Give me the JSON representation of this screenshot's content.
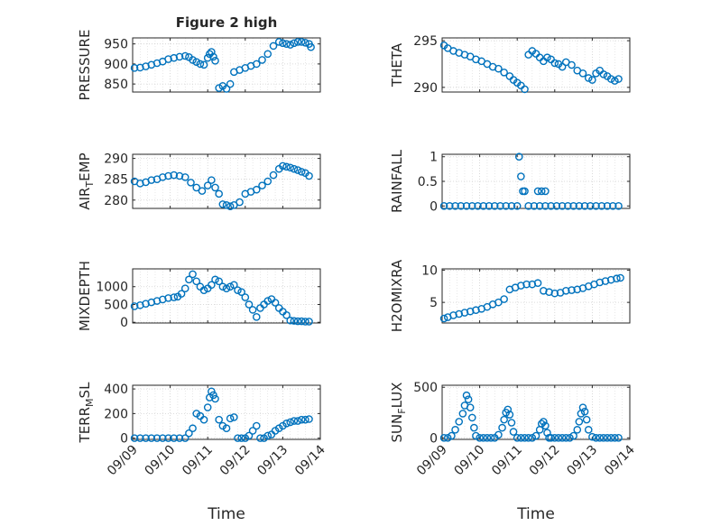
{
  "figure": {
    "title": "Figure 2 high",
    "xlabel": "Time"
  },
  "chart_data": [
    {
      "type": "scatter",
      "ylabel": "PRESSURE",
      "ylim": [
        830,
        965
      ],
      "yticks": [
        850,
        900,
        950
      ],
      "xlim": [
        0,
        5
      ],
      "xticklabels": [
        "09/09",
        "09/10",
        "09/11",
        "09/12",
        "09/13",
        "09/14"
      ],
      "grid": true,
      "marker": "circle-open",
      "color": "#0072BD",
      "series": [
        {
          "x": [
            0.05,
            0.2,
            0.35,
            0.5,
            0.65,
            0.8,
            0.95,
            1.1,
            1.25,
            1.4,
            1.5,
            1.6,
            1.7,
            1.8,
            1.9,
            2.0,
            2.05,
            2.1,
            2.15,
            2.2,
            2.3,
            2.4,
            2.5,
            2.6,
            2.7,
            2.85,
            3.0,
            3.15,
            3.3,
            3.45,
            3.6,
            3.75,
            3.9,
            4.0,
            4.1,
            4.2,
            4.3,
            4.4,
            4.5,
            4.6,
            4.7,
            4.75
          ],
          "y": [
            890,
            891,
            894,
            898,
            902,
            906,
            912,
            915,
            918,
            920,
            917,
            910,
            905,
            900,
            898,
            915,
            925,
            930,
            918,
            908,
            840,
            845,
            838,
            850,
            880,
            885,
            890,
            895,
            900,
            910,
            925,
            945,
            955,
            952,
            950,
            948,
            952,
            955,
            955,
            953,
            950,
            942
          ]
        }
      ]
    },
    {
      "type": "scatter",
      "ylabel": "THETA",
      "ylim": [
        289.5,
        295.3
      ],
      "yticks": [
        290,
        295
      ],
      "xlim": [
        0,
        5
      ],
      "grid": true,
      "marker": "circle-open",
      "color": "#0072BD",
      "series": [
        {
          "x": [
            0.05,
            0.15,
            0.3,
            0.45,
            0.6,
            0.75,
            0.9,
            1.05,
            1.2,
            1.35,
            1.5,
            1.65,
            1.8,
            1.9,
            2.0,
            2.1,
            2.2,
            2.3,
            2.4,
            2.5,
            2.6,
            2.7,
            2.8,
            2.9,
            3.0,
            3.1,
            3.2,
            3.3,
            3.45,
            3.6,
            3.75,
            3.9,
            4.0,
            4.1,
            4.2,
            4.3,
            4.4,
            4.5,
            4.6,
            4.7
          ],
          "y": [
            294.5,
            294.2,
            293.9,
            293.7,
            293.5,
            293.3,
            293.0,
            292.8,
            292.5,
            292.2,
            292.0,
            291.6,
            291.2,
            290.8,
            290.5,
            290.2,
            289.8,
            293.5,
            293.9,
            293.6,
            293.2,
            292.8,
            293.2,
            293.0,
            292.6,
            292.5,
            292.2,
            292.7,
            292.4,
            291.8,
            291.5,
            291.0,
            290.8,
            291.5,
            291.8,
            291.4,
            291.2,
            290.9,
            290.7,
            290.9
          ]
        }
      ]
    },
    {
      "type": "scatter",
      "ylabel": "AIR_T_EMP",
      "ylim": [
        278,
        291
      ],
      "yticks": [
        280,
        285,
        290
      ],
      "xlim": [
        0,
        5
      ],
      "grid": true,
      "marker": "circle-open",
      "color": "#0072BD",
      "series": [
        {
          "x": [
            0.05,
            0.2,
            0.35,
            0.5,
            0.65,
            0.8,
            0.95,
            1.1,
            1.25,
            1.4,
            1.55,
            1.7,
            1.85,
            2.0,
            2.1,
            2.2,
            2.3,
            2.4,
            2.5,
            2.6,
            2.7,
            2.85,
            3.0,
            3.15,
            3.3,
            3.45,
            3.6,
            3.75,
            3.9,
            4.0,
            4.1,
            4.2,
            4.3,
            4.4,
            4.5,
            4.6,
            4.7
          ],
          "y": [
            284.5,
            284.0,
            284.3,
            284.8,
            285.0,
            285.5,
            285.8,
            286.0,
            285.8,
            285.5,
            284.2,
            283.0,
            282.2,
            283.5,
            284.8,
            283.0,
            281.5,
            279.0,
            278.8,
            278.5,
            278.8,
            279.5,
            281.5,
            282.0,
            282.5,
            283.5,
            284.5,
            286.0,
            287.5,
            288.2,
            288.0,
            287.8,
            287.5,
            287.2,
            286.8,
            286.5,
            285.8
          ]
        }
      ]
    },
    {
      "type": "scatter",
      "ylabel": "RAINFALL",
      "ylim": [
        -0.05,
        1.05
      ],
      "yticks": [
        0,
        0.5,
        1
      ],
      "xlim": [
        0,
        5
      ],
      "grid": true,
      "marker": "circle-open",
      "color": "#0072BD",
      "series": [
        {
          "x": [
            0.05,
            0.2,
            0.35,
            0.5,
            0.65,
            0.8,
            0.95,
            1.1,
            1.25,
            1.4,
            1.55,
            1.7,
            1.85,
            2.0,
            2.05,
            2.1,
            2.15,
            2.2,
            2.3,
            2.45,
            2.6,
            2.75,
            2.9,
            3.05,
            3.2,
            3.35,
            3.5,
            3.65,
            3.8,
            3.95,
            4.1,
            4.25,
            4.4,
            4.55,
            4.7,
            2.55,
            2.65,
            2.75
          ],
          "y": [
            0,
            0,
            0,
            0,
            0,
            0,
            0,
            0,
            0,
            0,
            0,
            0,
            0,
            0,
            1.0,
            0.6,
            0.3,
            0.3,
            0,
            0,
            0,
            0,
            0,
            0,
            0,
            0,
            0,
            0,
            0,
            0,
            0,
            0,
            0,
            0,
            0,
            0.3,
            0.3,
            0.3
          ]
        }
      ]
    },
    {
      "type": "scatter",
      "ylabel": "MIXDEPTH",
      "ylim": [
        -20,
        1500
      ],
      "yticks": [
        0,
        500,
        1000
      ],
      "xlim": [
        0,
        5
      ],
      "grid": true,
      "marker": "circle-open",
      "color": "#0072BD",
      "series": [
        {
          "x": [
            0.05,
            0.2,
            0.35,
            0.5,
            0.65,
            0.8,
            0.95,
            1.1,
            1.2,
            1.3,
            1.4,
            1.5,
            1.6,
            1.7,
            1.8,
            1.9,
            2.0,
            2.1,
            2.2,
            2.3,
            2.4,
            2.5,
            2.6,
            2.7,
            2.8,
            2.9,
            3.0,
            3.1,
            3.2,
            3.3,
            3.4,
            3.5,
            3.6,
            3.7,
            3.8,
            3.9,
            4.0,
            4.1,
            4.2,
            4.3,
            4.4,
            4.5,
            4.6,
            4.7
          ],
          "y": [
            450,
            480,
            520,
            560,
            600,
            640,
            680,
            700,
            720,
            800,
            950,
            1200,
            1350,
            1150,
            1000,
            900,
            950,
            1050,
            1200,
            1150,
            1000,
            950,
            1000,
            1050,
            900,
            850,
            700,
            500,
            350,
            150,
            400,
            500,
            600,
            650,
            550,
            400,
            300,
            200,
            50,
            40,
            30,
            30,
            20,
            20
          ]
        }
      ]
    },
    {
      "type": "scatter",
      "ylabel": "H2OMIXRA",
      "ylim": [
        1.8,
        10.2
      ],
      "yticks": [
        5,
        10
      ],
      "xlim": [
        0,
        5
      ],
      "grid": true,
      "marker": "circle-open",
      "color": "#0072BD",
      "series": [
        {
          "x": [
            0.05,
            0.15,
            0.3,
            0.45,
            0.6,
            0.75,
            0.9,
            1.05,
            1.2,
            1.35,
            1.5,
            1.65,
            1.8,
            1.95,
            2.1,
            2.25,
            2.4,
            2.55,
            2.7,
            2.85,
            3.0,
            3.15,
            3.3,
            3.45,
            3.6,
            3.75,
            3.9,
            4.05,
            4.2,
            4.35,
            4.5,
            4.65,
            4.75
          ],
          "y": [
            2.5,
            2.7,
            3.0,
            3.2,
            3.4,
            3.6,
            3.8,
            4.0,
            4.3,
            4.7,
            5.0,
            5.5,
            7.0,
            7.3,
            7.6,
            7.8,
            7.8,
            8.0,
            6.8,
            6.6,
            6.4,
            6.5,
            6.8,
            6.9,
            7.0,
            7.2,
            7.5,
            7.8,
            8.1,
            8.3,
            8.5,
            8.7,
            8.8
          ]
        }
      ]
    },
    {
      "type": "scatter",
      "ylabel": "TERR_M_SL",
      "ylim": [
        -10,
        430
      ],
      "yticks": [
        0,
        200,
        400
      ],
      "xlim": [
        0,
        5
      ],
      "grid": true,
      "marker": "circle-open",
      "color": "#0072BD",
      "series": [
        {
          "x": [
            0.05,
            0.2,
            0.35,
            0.5,
            0.65,
            0.8,
            0.95,
            1.1,
            1.25,
            1.4,
            1.5,
            1.6,
            1.7,
            1.8,
            1.9,
            2.0,
            2.05,
            2.1,
            2.15,
            2.2,
            2.3,
            2.4,
            2.5,
            2.6,
            2.7,
            2.8,
            2.9,
            3.0,
            3.1,
            3.2,
            3.3,
            3.4,
            3.5,
            3.6,
            3.7,
            3.8,
            3.9,
            4.0,
            4.1,
            4.2,
            4.3,
            4.4,
            4.5,
            4.6,
            4.7
          ],
          "y": [
            0,
            0,
            0,
            0,
            0,
            0,
            0,
            0,
            0,
            0,
            40,
            80,
            200,
            180,
            150,
            250,
            330,
            380,
            350,
            320,
            150,
            100,
            80,
            160,
            170,
            0,
            0,
            0,
            20,
            60,
            100,
            0,
            0,
            20,
            30,
            60,
            80,
            100,
            120,
            130,
            140,
            140,
            150,
            150,
            155
          ]
        }
      ]
    },
    {
      "type": "scatter",
      "ylabel": "SUN_F_LUX",
      "ylim": [
        -15,
        520
      ],
      "yticks": [
        0,
        500
      ],
      "xlim": [
        0,
        5
      ],
      "grid": true,
      "marker": "circle-open",
      "color": "#0072BD",
      "series": [
        {
          "x": [
            0.05,
            0.15,
            0.25,
            0.35,
            0.45,
            0.55,
            0.6,
            0.65,
            0.7,
            0.75,
            0.8,
            0.85,
            0.9,
            1.0,
            1.1,
            1.2,
            1.3,
            1.4,
            1.5,
            1.6,
            1.65,
            1.7,
            1.75,
            1.8,
            1.85,
            1.9,
            2.0,
            2.1,
            2.2,
            2.3,
            2.4,
            2.5,
            2.6,
            2.65,
            2.7,
            2.75,
            2.8,
            2.85,
            2.9,
            3.0,
            3.1,
            3.2,
            3.3,
            3.4,
            3.5,
            3.6,
            3.65,
            3.7,
            3.75,
            3.8,
            3.85,
            3.9,
            4.0,
            4.1,
            4.2,
            4.3,
            4.4,
            4.5,
            4.6,
            4.7
          ],
          "y": [
            0,
            0,
            20,
            80,
            160,
            240,
            320,
            420,
            380,
            300,
            200,
            100,
            20,
            0,
            0,
            0,
            0,
            0,
            30,
            100,
            180,
            250,
            280,
            230,
            150,
            60,
            0,
            0,
            0,
            0,
            0,
            20,
            80,
            140,
            160,
            120,
            50,
            0,
            0,
            0,
            0,
            0,
            0,
            0,
            20,
            80,
            160,
            240,
            300,
            260,
            180,
            80,
            10,
            0,
            0,
            0,
            0,
            0,
            0,
            0
          ]
        }
      ]
    }
  ]
}
